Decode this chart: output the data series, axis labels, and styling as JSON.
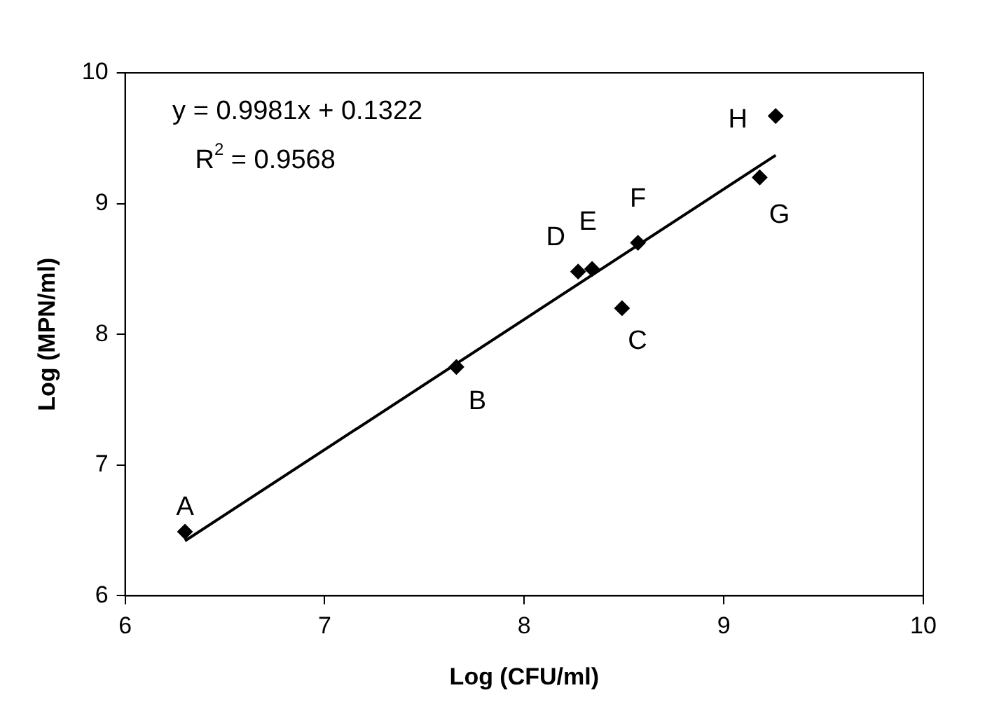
{
  "chart_data": {
    "type": "scatter",
    "xlabel": "Log (CFU/ml)",
    "ylabel": "Log (MPN/ml)",
    "xlim": [
      6,
      10
    ],
    "xticks": [
      6,
      7,
      8,
      9,
      10
    ],
    "ylim": [
      6,
      10
    ],
    "yticks": [
      6,
      7,
      8,
      9,
      10
    ],
    "grid": false,
    "legend": false,
    "series": [
      {
        "color": "#000000",
        "marker": "diamond",
        "x": [
          6.3,
          7.66,
          8.49,
          8.27,
          8.34,
          8.57,
          9.18,
          9.26
        ],
        "values": [
          6.49,
          7.75,
          8.2,
          8.48,
          8.5,
          8.7,
          9.2,
          9.67
        ]
      },
      {
        "type": "line",
        "color": "#000000",
        "marker": "none",
        "line_style": "solid",
        "x": [
          6.3,
          9.26
        ],
        "values": [
          6.42,
          9.37
        ]
      }
    ],
    "annotations": [
      "y = 0.9981x + 0.1322",
      "R$^{2}$ = 0.9568",
      {
        "text": "A",
        "x": 6.3,
        "y": 6.49
      },
      {
        "text": "B",
        "x": 7.66,
        "y": 7.75
      },
      {
        "text": "C",
        "x": 8.49,
        "y": 8.2
      },
      {
        "text": "D",
        "x": 8.27,
        "y": 8.48
      },
      {
        "text": "E",
        "x": 8.34,
        "y": 8.5
      },
      {
        "text": "F",
        "x": 8.57,
        "y": 8.7
      },
      {
        "text": "G",
        "x": 9.18,
        "y": 9.2
      },
      {
        "text": "H",
        "x": 9.26,
        "y": 9.67
      }
    ]
  }
}
